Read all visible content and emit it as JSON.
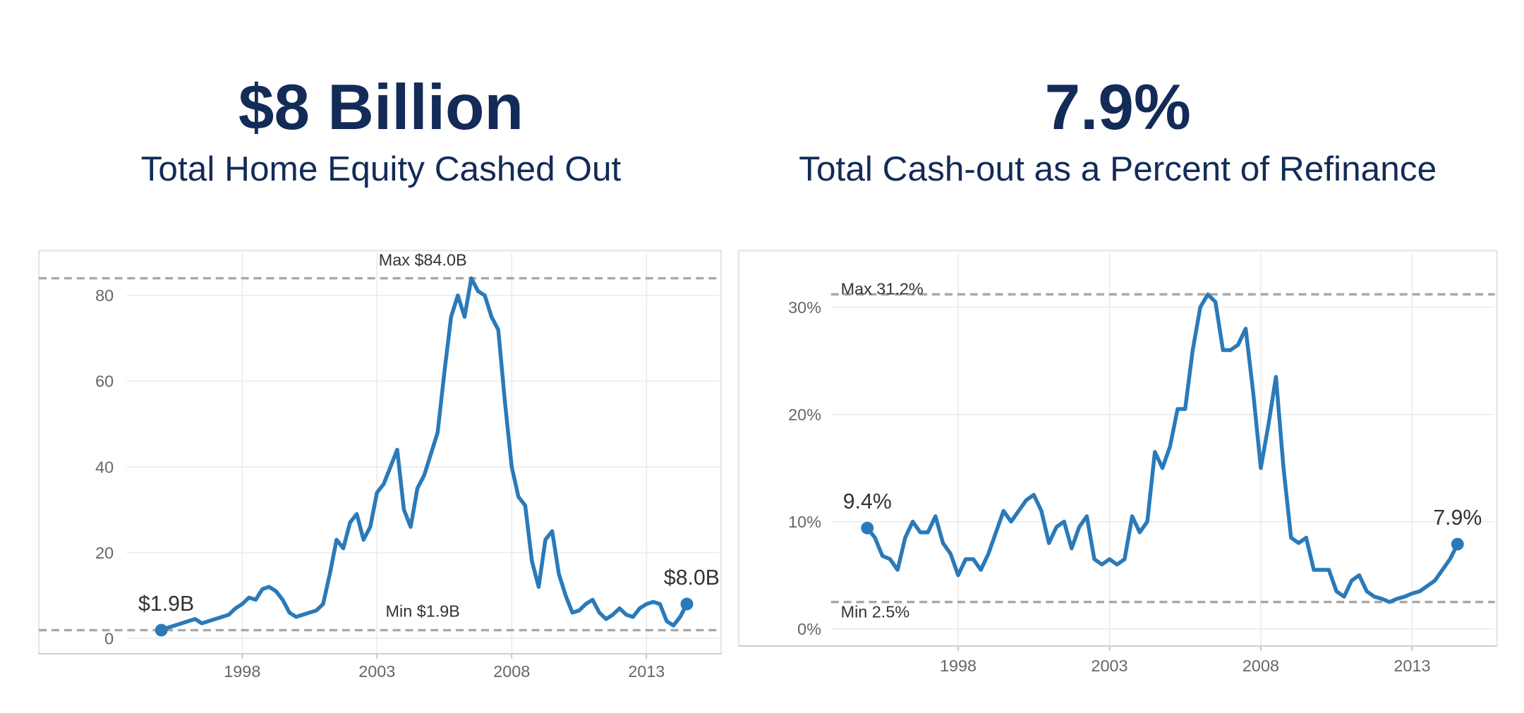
{
  "chart_data": [
    {
      "type": "line",
      "title": "$8 Billion",
      "subtitle": "Total Home Equity Cashed Out",
      "x": [
        1995,
        1995.25,
        1995.5,
        1995.75,
        1996,
        1996.25,
        1996.5,
        1996.75,
        1997,
        1997.25,
        1997.5,
        1997.75,
        1998,
        1998.25,
        1998.5,
        1998.75,
        1999,
        1999.25,
        1999.5,
        1999.75,
        2000,
        2000.25,
        2000.5,
        2000.75,
        2001,
        2001.25,
        2001.5,
        2001.75,
        2002,
        2002.25,
        2002.5,
        2002.75,
        2003,
        2003.25,
        2003.5,
        2003.75,
        2004,
        2004.25,
        2004.5,
        2004.75,
        2005,
        2005.25,
        2005.5,
        2005.75,
        2006,
        2006.25,
        2006.5,
        2006.75,
        2007,
        2007.25,
        2007.5,
        2007.75,
        2008,
        2008.25,
        2008.5,
        2008.75,
        2009,
        2009.25,
        2009.5,
        2009.75,
        2010,
        2010.25,
        2010.5,
        2010.75,
        2011,
        2011.25,
        2011.5,
        2011.75,
        2012,
        2012.25,
        2012.5,
        2012.75,
        2013,
        2013.25,
        2013.5,
        2013.75,
        2014,
        2014.25,
        2014.5
      ],
      "series": [
        {
          "color": "#2a7ab9",
          "values": [
            1.9,
            2.5,
            3,
            3.5,
            4,
            4.5,
            3.5,
            4,
            4.5,
            5,
            5.5,
            7,
            8,
            9.5,
            9,
            11.5,
            12,
            11,
            9,
            6,
            5,
            5.5,
            6,
            6.5,
            8,
            15,
            23,
            21,
            27,
            29,
            23,
            26,
            34,
            36,
            40,
            44,
            30,
            26,
            35,
            38,
            43,
            48,
            62,
            75,
            80,
            75,
            84,
            81,
            80,
            75,
            72,
            55,
            40,
            33,
            31,
            18,
            12,
            23,
            25,
            15,
            10,
            6,
            6.5,
            8,
            9,
            6,
            4.5,
            5.5,
            7,
            5.5,
            5,
            7,
            8,
            8.5,
            8,
            4,
            3,
            5,
            8
          ],
          "value_labels": [
            "$1.9B",
            null,
            null,
            null,
            null,
            null,
            null,
            null,
            null,
            null,
            null,
            null,
            null,
            null,
            null,
            null,
            null,
            null,
            null,
            null,
            null,
            null,
            null,
            null,
            null,
            null,
            null,
            null,
            null,
            null,
            null,
            null,
            null,
            null,
            null,
            null,
            null,
            null,
            null,
            null,
            null,
            null,
            null,
            null,
            null,
            null,
            null,
            null,
            null,
            null,
            null,
            null,
            null,
            null,
            null,
            null,
            null,
            null,
            null,
            null,
            null,
            null,
            null,
            null,
            null,
            null,
            null,
            null,
            null,
            null,
            null,
            null,
            null,
            null,
            null,
            null,
            null,
            null,
            "$8.0B"
          ]
        }
      ],
      "reference_lines": [
        {
          "value": 84,
          "label": "Max $84.0B"
        },
        {
          "value": 1.9,
          "label": "Min $1.9B"
        }
      ],
      "xlim": [
        1993.7,
        2015.7
      ],
      "xticks": [
        1998,
        2003,
        2008,
        2013
      ],
      "ylim": [
        -3.6,
        90
      ],
      "yticks": [
        0,
        20,
        40,
        60,
        80
      ],
      "grid": true
    },
    {
      "type": "line",
      "title": "7.9%",
      "subtitle": "Total Cash-out as a Percent of Refinance",
      "x": [
        1995,
        1995.25,
        1995.5,
        1995.75,
        1996,
        1996.25,
        1996.5,
        1996.75,
        1997,
        1997.25,
        1997.5,
        1997.75,
        1998,
        1998.25,
        1998.5,
        1998.75,
        1999,
        1999.25,
        1999.5,
        1999.75,
        2000,
        2000.25,
        2000.5,
        2000.75,
        2001,
        2001.25,
        2001.5,
        2001.75,
        2002,
        2002.25,
        2002.5,
        2002.75,
        2003,
        2003.25,
        2003.5,
        2003.75,
        2004,
        2004.25,
        2004.5,
        2004.75,
        2005,
        2005.25,
        2005.5,
        2005.75,
        2006,
        2006.25,
        2006.5,
        2006.75,
        2007,
        2007.25,
        2007.5,
        2007.75,
        2008,
        2008.25,
        2008.5,
        2008.75,
        2009,
        2009.25,
        2009.5,
        2009.75,
        2010,
        2010.25,
        2010.5,
        2010.75,
        2011,
        2011.25,
        2011.5,
        2011.75,
        2012,
        2012.25,
        2012.5,
        2012.75,
        2013,
        2013.25,
        2013.5,
        2013.75,
        2014,
        2014.25,
        2014.5
      ],
      "series": [
        {
          "color": "#2a7ab9",
          "values": [
            9.4,
            8.5,
            6.8,
            6.5,
            5.5,
            8.5,
            10,
            9,
            9,
            10.5,
            8,
            7,
            5,
            6.5,
            6.5,
            5.5,
            7,
            9,
            11,
            10,
            11,
            12,
            12.5,
            11,
            8,
            9.5,
            10,
            7.5,
            9.5,
            10.5,
            6.5,
            6,
            6.5,
            6,
            6.5,
            10.5,
            9,
            10,
            16.5,
            15,
            17,
            20.5,
            20.5,
            26,
            30,
            31.2,
            30.5,
            26,
            26,
            26.5,
            28,
            22,
            15,
            19,
            23.5,
            15,
            8.5,
            8,
            8.5,
            5.5,
            5.5,
            5.5,
            3.5,
            3,
            4.5,
            5,
            3.5,
            3,
            2.8,
            2.5,
            2.8,
            3,
            3.3,
            3.5,
            4,
            4.5,
            5.5,
            6.5,
            7.9
          ],
          "value_labels": [
            "9.4%",
            null,
            null,
            null,
            null,
            null,
            null,
            null,
            null,
            null,
            null,
            null,
            null,
            null,
            null,
            null,
            null,
            null,
            null,
            null,
            null,
            null,
            null,
            null,
            null,
            null,
            null,
            null,
            null,
            null,
            null,
            null,
            null,
            null,
            null,
            null,
            null,
            null,
            null,
            null,
            null,
            null,
            null,
            null,
            null,
            null,
            null,
            null,
            null,
            null,
            null,
            null,
            null,
            null,
            null,
            null,
            null,
            null,
            null,
            null,
            null,
            null,
            null,
            null,
            null,
            null,
            null,
            null,
            null,
            null,
            null,
            null,
            null,
            null,
            null,
            null,
            null,
            null,
            "7.9%"
          ]
        }
      ],
      "reference_lines": [
        {
          "value": 31.2,
          "label": "Max 31.2%"
        },
        {
          "value": 2.5,
          "label": "Min 2.5%"
        }
      ],
      "xlim": [
        1993.8,
        2015.7
      ],
      "xticks": [
        1998,
        2003,
        2008,
        2013
      ],
      "ylim": [
        -1.6,
        35.1
      ],
      "yticks": [
        {
          "value": 0,
          "label": "0%"
        },
        {
          "value": 10,
          "label": "10%"
        },
        {
          "value": 20,
          "label": "20%"
        },
        {
          "value": 30,
          "label": "30%"
        }
      ],
      "grid": true
    }
  ]
}
